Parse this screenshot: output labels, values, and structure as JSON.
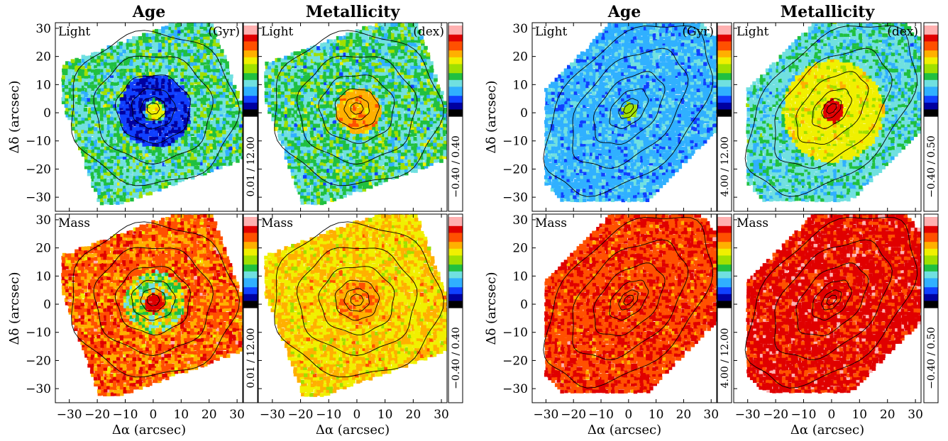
{
  "figure": {
    "groups": [
      {
        "id": "left",
        "columns": [
          {
            "title": "Age",
            "unit": "(Gyr)",
            "cbar_range": [
              "0.01 / 12.00",
              "0.01 / 12.00"
            ]
          },
          {
            "title": "Metallicity",
            "unit": "(dex)",
            "cbar_range": [
              "−0.40 / 0.40",
              "−0.40 / 0.40"
            ]
          }
        ],
        "rows": [
          {
            "label": "Light"
          },
          {
            "label": "Mass"
          }
        ]
      },
      {
        "id": "right",
        "columns": [
          {
            "title": "Age",
            "unit": "(Gyr)",
            "cbar_range": [
              "4.00 / 12.00",
              "4.00 / 12.00"
            ]
          },
          {
            "title": "Metallicity",
            "unit": "(dex)",
            "cbar_range": [
              "−0.40 / 0.50",
              "−0.40 / 0.50"
            ]
          }
        ],
        "rows": [
          {
            "label": "Light"
          },
          {
            "label": "Mass"
          }
        ]
      }
    ],
    "xlabel": "Δα  (arcsec)",
    "ylabel": "Δδ  (arcsec)"
  },
  "chart_data": {
    "type": "heatmap",
    "xlim": [
      -35,
      32
    ],
    "ylim": [
      -35,
      32
    ],
    "xticks": [
      "−30",
      "−20",
      "−10",
      "0",
      "10",
      "20",
      "30"
    ],
    "xtick_values": [
      -30,
      -20,
      -10,
      0,
      10,
      20,
      30
    ],
    "yticks": [
      "−30",
      "−20",
      "−10",
      "0",
      "10",
      "20",
      "30"
    ],
    "ytick_values": [
      -30,
      -20,
      -10,
      0,
      10,
      20,
      30
    ],
    "colormap": [
      "#000000",
      "#0000a0",
      "#1040ff",
      "#30b0ff",
      "#70e0e0",
      "#20c040",
      "#a0e000",
      "#f0f000",
      "#ffb000",
      "#ff5000",
      "#e00000",
      "#ffb0b0",
      "#ffffff"
    ]
  }
}
